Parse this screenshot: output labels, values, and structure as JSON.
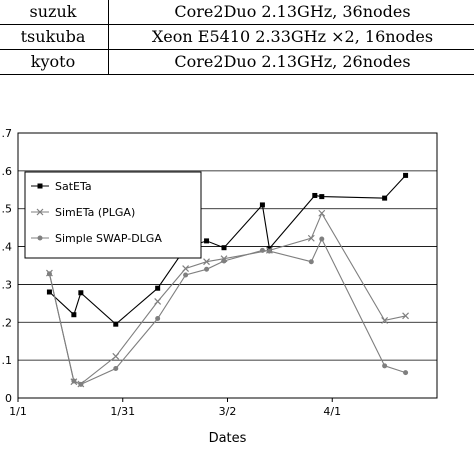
{
  "spec_table": {
    "rows": [
      {
        "site": "suzuk",
        "spec": "Core2Duo 2.13GHz, 36nodes"
      },
      {
        "site": "tsukuba",
        "spec": "Xeon E5410 2.33GHz ×2, 16nodes"
      },
      {
        "site": "kyoto",
        "spec": "Core2Duo 2.13GHz, 26nodes"
      }
    ]
  },
  "chart_data": {
    "type": "line",
    "title": "",
    "xlabel": "Dates",
    "ylabel": "",
    "x_tick_labels": [
      "1/1",
      "1/31",
      "3/2",
      "4/1"
    ],
    "y_tick_labels": [
      "0",
      ".1",
      ".2",
      ".3",
      ".4",
      ".5",
      ".6",
      ".7"
    ],
    "xlim": [
      0,
      120
    ],
    "ylim": [
      0,
      0.7
    ],
    "grid": "horizontal",
    "legend_position": "top-left",
    "series": [
      {
        "name": "SatETa",
        "marker": "square",
        "color": "#000000",
        "x": [
          9,
          16,
          18,
          28,
          40,
          48,
          54,
          59,
          70,
          72,
          85,
          87,
          105,
          111
        ],
        "y": [
          0.28,
          0.22,
          0.278,
          0.195,
          0.29,
          0.397,
          0.415,
          0.397,
          0.51,
          0.395,
          0.535,
          0.532,
          0.528,
          0.588
        ]
      },
      {
        "name": "SimETa (PLGA)",
        "marker": "x",
        "color": "#7f7f7f",
        "x": [
          9,
          16,
          18,
          28,
          40,
          48,
          54,
          59,
          72,
          84,
          87,
          105,
          111
        ],
        "y": [
          0.33,
          0.043,
          0.037,
          0.11,
          0.255,
          0.342,
          0.36,
          0.368,
          0.39,
          0.422,
          0.488,
          0.205,
          0.217
        ]
      },
      {
        "name": "Simple SWAP-DLGA",
        "marker": "dot",
        "color": "#7f7f7f",
        "x": [
          9,
          16,
          18,
          28,
          40,
          48,
          54,
          59,
          70,
          72,
          84,
          87,
          105,
          111
        ],
        "y": [
          0.328,
          0.045,
          0.036,
          0.078,
          0.21,
          0.325,
          0.34,
          0.362,
          0.39,
          0.388,
          0.36,
          0.42,
          0.085,
          0.067
        ]
      }
    ]
  }
}
